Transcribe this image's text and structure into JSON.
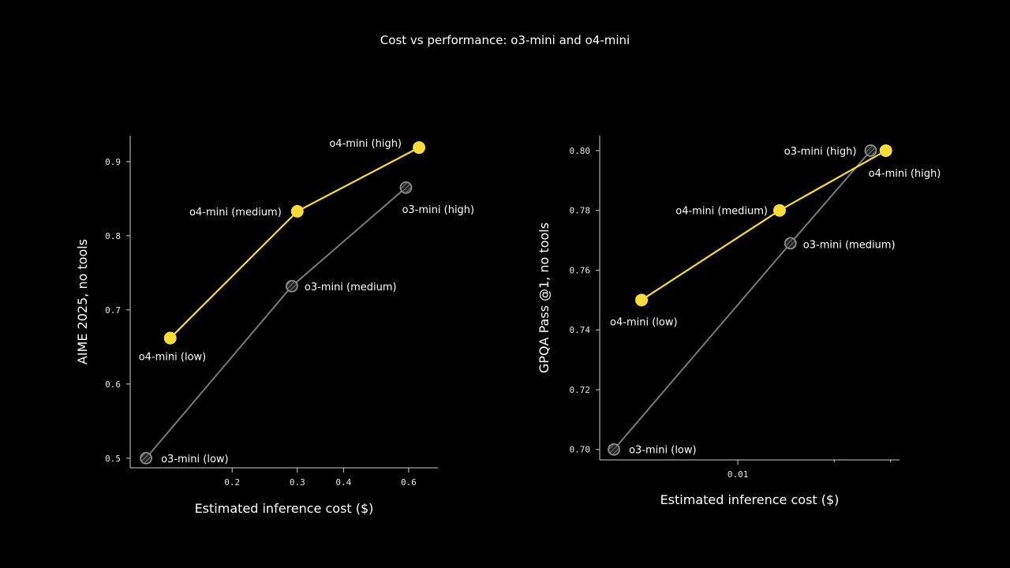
{
  "title": "Cost vs performance: o3-mini and o4-mini",
  "colors": {
    "o4": "#f7dc3a",
    "o3": "#7a7a7a",
    "axis": "#cfcfcf"
  },
  "chart_data": [
    {
      "type": "line",
      "xscale": "log",
      "xlabel": "Estimated inference cost ($)",
      "ylabel": "AIME 2025, no tools",
      "xlim": [
        0.106,
        0.72
      ],
      "ylim": [
        0.487,
        0.935
      ],
      "xticks": [
        0.2,
        0.3,
        0.4,
        0.6
      ],
      "xtick_labels": [
        "0.2",
        "0.3",
        "0.4",
        "0.6"
      ],
      "yticks": [
        0.5,
        0.6,
        0.7,
        0.8,
        0.9
      ],
      "ytick_labels": [
        "0.5",
        "0.6",
        "0.7",
        "0.8",
        "0.9"
      ],
      "series": [
        {
          "key": "o4",
          "points": [
            {
              "x": 0.136,
              "y": 0.662,
              "label": "o4-mini (low)"
            },
            {
              "x": 0.3,
              "y": 0.833,
              "label": "o4-mini (medium)"
            },
            {
              "x": 0.64,
              "y": 0.919,
              "label": "o4-mini (high)"
            }
          ]
        },
        {
          "key": "o3",
          "points": [
            {
              "x": 0.117,
              "y": 0.5,
              "label": "o3-mini (low)"
            },
            {
              "x": 0.29,
              "y": 0.732,
              "label": "o3-mini (medium)"
            },
            {
              "x": 0.59,
              "y": 0.865,
              "label": "o3-mini (high)"
            }
          ]
        }
      ]
    },
    {
      "type": "line",
      "xscale": "log",
      "xlabel": "Estimated inference cost ($)",
      "ylabel": "GPQA Pass @1, no tools",
      "xlim": [
        0.0037,
        0.032
      ],
      "ylim": [
        0.6965,
        0.805
      ],
      "xticks": [
        0.01
      ],
      "xtick_labels": [
        "0.01"
      ],
      "xminor": [
        0.02,
        0.03
      ],
      "yticks": [
        0.7,
        0.72,
        0.74,
        0.76,
        0.78,
        0.8
      ],
      "ytick_labels": [
        "0.70",
        "0.72",
        "0.74",
        "0.76",
        "0.78",
        "0.80"
      ],
      "series": [
        {
          "key": "o4",
          "points": [
            {
              "x": 0.005,
              "y": 0.75,
              "label": "o4-mini (low)"
            },
            {
              "x": 0.0135,
              "y": 0.78,
              "label": "o4-mini (medium)"
            },
            {
              "x": 0.029,
              "y": 0.8,
              "label": "o4-mini (high)"
            }
          ]
        },
        {
          "key": "o3",
          "points": [
            {
              "x": 0.0041,
              "y": 0.7,
              "label": "o3-mini (low)"
            },
            {
              "x": 0.0146,
              "y": 0.769,
              "label": "o3-mini (medium)"
            },
            {
              "x": 0.026,
              "y": 0.8,
              "label": "o3-mini (high)"
            }
          ]
        }
      ]
    }
  ]
}
